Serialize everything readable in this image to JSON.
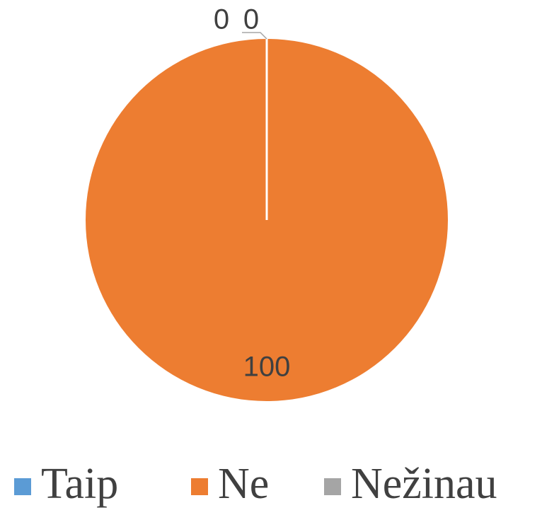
{
  "chart_data": {
    "type": "pie",
    "categories": [
      "Taip",
      "Ne",
      "Nežinau"
    ],
    "values": [
      0,
      100,
      0
    ],
    "colors": [
      "#5b9bd5",
      "#ed7d31",
      "#a5a5a5"
    ],
    "legend": "bottom"
  }
}
